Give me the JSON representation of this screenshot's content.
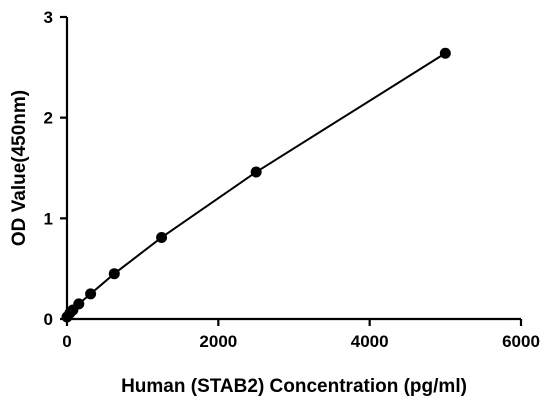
{
  "chart_data": {
    "type": "scatter",
    "xlabel": "Human  (STAB2) Concentration (pg/ml)",
    "ylabel": "OD Value(450nm)",
    "xlim": [
      0,
      6000
    ],
    "ylim": [
      0,
      3
    ],
    "xticks": [
      0,
      2000,
      4000,
      6000
    ],
    "yticks": [
      0,
      1,
      2,
      3
    ],
    "xtick_labels": [
      "0",
      "2000",
      "4000",
      "6000"
    ],
    "ytick_labels": [
      "0",
      "1",
      "2",
      "3"
    ],
    "grid": false,
    "series": [
      {
        "x": [
          0,
          39,
          78,
          156,
          312,
          625,
          1250,
          2500,
          5000
        ],
        "y": [
          0.02,
          0.06,
          0.09,
          0.15,
          0.25,
          0.45,
          0.81,
          1.46,
          2.64
        ],
        "color": "#000000"
      }
    ]
  }
}
